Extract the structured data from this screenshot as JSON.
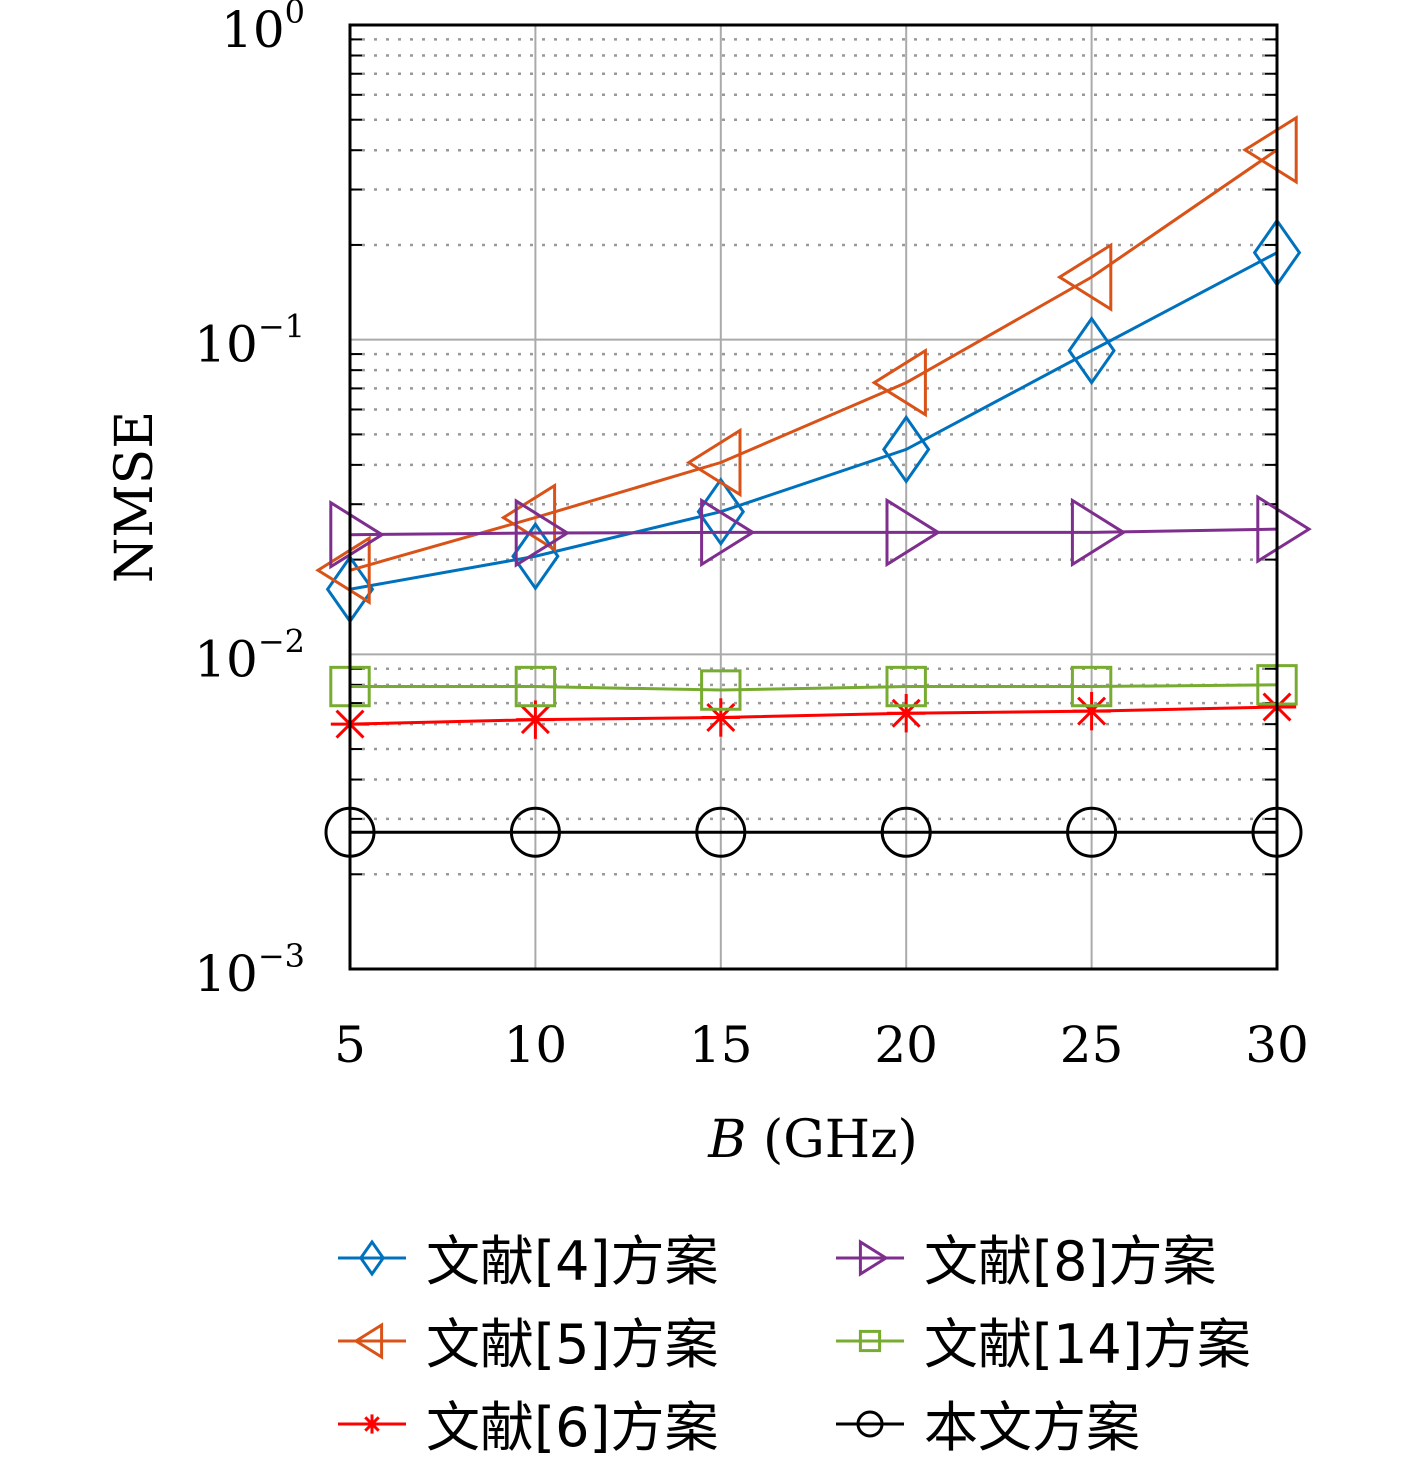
{
  "chart_data": {
    "type": "line",
    "title": "",
    "xlabel": "B (GHz)",
    "xlabel_var": "B",
    "xlabel_unit": "(GHz)",
    "ylabel": "NMSE",
    "yscale": "log",
    "xlim": [
      5,
      30
    ],
    "ylim": [
      0.001,
      1
    ],
    "grid": true,
    "x": [
      5,
      10,
      15,
      20,
      25,
      30
    ],
    "xticks": [
      "5",
      "10",
      "15",
      "20",
      "25",
      "30"
    ],
    "yticks": [
      {
        "value": 1,
        "base": "10",
        "exp": "0"
      },
      {
        "value": 0.1,
        "base": "10",
        "exp": "−1"
      },
      {
        "value": 0.01,
        "base": "10",
        "exp": "−2"
      },
      {
        "value": 0.001,
        "base": "10",
        "exp": "−3"
      }
    ],
    "legend_position": "bottom",
    "series": [
      {
        "name": "文献[4]方案",
        "color": "#0072BD",
        "marker": "diamond",
        "values": [
          0.0161,
          0.0205,
          0.0284,
          0.0448,
          0.0923,
          0.189
        ]
      },
      {
        "name": "文献[5]方案",
        "color": "#D95319",
        "marker": "triangle-left",
        "values": [
          0.0185,
          0.0272,
          0.0407,
          0.073,
          0.158,
          0.401
        ]
      },
      {
        "name": "文献[6]方案",
        "color": "#FF0000",
        "marker": "asterisk",
        "values": [
          0.006,
          0.0062,
          0.0063,
          0.0065,
          0.0066,
          0.0068
        ]
      },
      {
        "name": "文献[8]方案",
        "color": "#7E2F8E",
        "marker": "triangle-right",
        "values": [
          0.024,
          0.0243,
          0.0244,
          0.0244,
          0.0244,
          0.025
        ]
      },
      {
        "name": "文献[14]方案",
        "color": "#77AC30",
        "marker": "square",
        "values": [
          0.0079,
          0.0079,
          0.0077,
          0.0079,
          0.0079,
          0.008
        ]
      },
      {
        "name": "本文方案",
        "color": "#000000",
        "marker": "circle",
        "values": [
          0.00272,
          0.00272,
          0.00272,
          0.00272,
          0.00272,
          0.00272
        ]
      }
    ]
  }
}
